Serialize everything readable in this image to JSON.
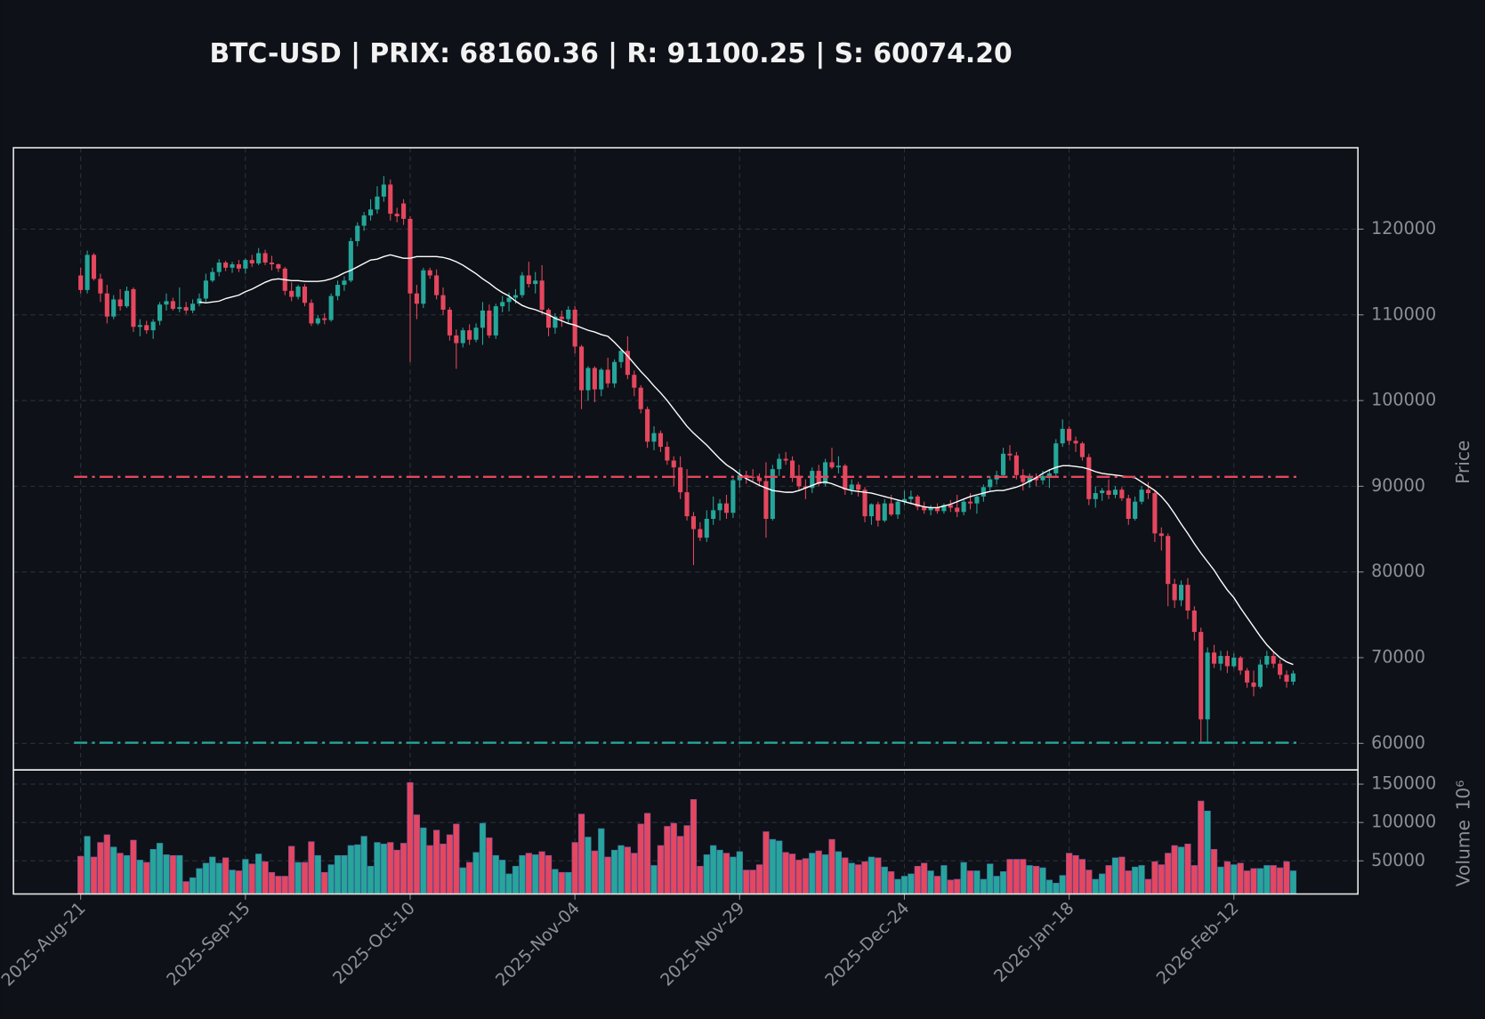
{
  "chart_data": {
    "type": "candlestick",
    "title": "BTC-USD | PRIX: 68160.36 | R: 91100.25 | S: 60074.20",
    "ylabel": "Price",
    "up_color": "#26a69a",
    "down_color": "#e5475e",
    "grid": true,
    "ylim": [
      56900,
      129500
    ],
    "yticks": [
      60000,
      70000,
      80000,
      90000,
      100000,
      110000,
      120000
    ],
    "categories": [
      "2025-Aug-21",
      null,
      null,
      null,
      null,
      null,
      null,
      null,
      null,
      null,
      null,
      null,
      null,
      null,
      null,
      null,
      null,
      null,
      null,
      null,
      null,
      null,
      null,
      null,
      null,
      "2025-Sep-15",
      null,
      null,
      null,
      null,
      null,
      null,
      null,
      null,
      null,
      null,
      null,
      null,
      null,
      null,
      null,
      null,
      null,
      null,
      null,
      null,
      null,
      null,
      null,
      null,
      "2025-Oct-10",
      null,
      null,
      null,
      null,
      null,
      null,
      null,
      null,
      null,
      null,
      null,
      null,
      null,
      null,
      null,
      null,
      null,
      null,
      null,
      null,
      null,
      null,
      null,
      null,
      "2025-Nov-04",
      null,
      null,
      null,
      null,
      null,
      null,
      null,
      null,
      null,
      null,
      null,
      null,
      null,
      null,
      null,
      null,
      null,
      null,
      null,
      null,
      null,
      null,
      null,
      null,
      "2025-Nov-29",
      null,
      null,
      null,
      null,
      null,
      null,
      null,
      null,
      null,
      null,
      null,
      null,
      null,
      null,
      null,
      null,
      null,
      null,
      null,
      null,
      null,
      null,
      null,
      null,
      "2025-Dec-24",
      null,
      null,
      null,
      null,
      null,
      null,
      null,
      null,
      null,
      null,
      null,
      null,
      null,
      null,
      null,
      null,
      null,
      null,
      null,
      null,
      null,
      null,
      null,
      null,
      "2026-Jan-18",
      null,
      null,
      null,
      null,
      null,
      null,
      null,
      null,
      null,
      null,
      null,
      null,
      null,
      null,
      null,
      null,
      null,
      null,
      null,
      null,
      null,
      null,
      null,
      null,
      "2026-Feb-12",
      null,
      null,
      null,
      null,
      null,
      null,
      null,
      null,
      null
    ],
    "open": [
      114600,
      112900,
      117000,
      114200,
      112500,
      109800,
      111800,
      111000,
      113000,
      108600,
      108800,
      108200,
      109300,
      111200,
      111600,
      110700,
      110900,
      110500,
      111300,
      111900,
      114000,
      115000,
      116100,
      115500,
      115900,
      115400,
      116400,
      116000,
      117200,
      116100,
      115900,
      115400,
      112800,
      112100,
      113300,
      111400,
      109000,
      109600,
      109400,
      112200,
      113500,
      114000,
      118600,
      120400,
      121600,
      122300,
      123800,
      125200,
      121800,
      123000,
      121200,
      112500,
      111300,
      115200,
      114600,
      112300,
      110600,
      107600,
      106700,
      108200,
      107100,
      108500,
      110500,
      107600,
      111000,
      111500,
      112000,
      112300,
      114600,
      113600,
      114000,
      110600,
      108500,
      109800,
      109500,
      110600,
      106300,
      101200,
      103800,
      101300,
      103600,
      102000,
      104500,
      105800,
      103000,
      101500,
      99000,
      95200,
      96200,
      94600,
      93000,
      92200,
      89300,
      86500,
      85000,
      84000,
      86200,
      87200,
      88000,
      86900,
      90700,
      91300,
      91100,
      91000,
      90600,
      86200,
      92000,
      93200,
      93000,
      91200,
      90000,
      89800,
      91800,
      90300,
      92800,
      92200,
      92400,
      89600,
      90200,
      89600,
      86500,
      87900,
      86000,
      88000,
      86700,
      88200,
      88500,
      88800,
      87600,
      87200,
      87500,
      87100,
      87800,
      87500,
      87000,
      88200,
      88000,
      88800,
      89900,
      90800,
      91300,
      93800,
      93600,
      91300,
      90500,
      91000,
      90700,
      91200,
      91500,
      95000,
      96700,
      95300,
      95000,
      93400,
      88500,
      89200,
      89500,
      89000,
      89600,
      88600,
      86200,
      88200,
      89600,
      89200,
      84500,
      84200,
      78600,
      76700,
      78500,
      75500,
      73000,
      62800,
      70600,
      69300,
      70200,
      69000,
      70000,
      68500,
      67100,
      66600,
      69200,
      70200,
      69300,
      68000,
      67200
    ],
    "high": [
      115500,
      117500,
      117200,
      114800,
      113500,
      112300,
      113000,
      113300,
      113200,
      109500,
      109300,
      109500,
      111500,
      112500,
      112000,
      113200,
      111500,
      111800,
      112500,
      114800,
      115500,
      116500,
      116300,
      116200,
      116400,
      116600,
      117000,
      117800,
      117600,
      116900,
      116000,
      115600,
      113800,
      113500,
      113600,
      111800,
      110000,
      110200,
      112500,
      114000,
      114500,
      119000,
      120800,
      122000,
      123500,
      125000,
      126200,
      125800,
      122500,
      123500,
      121500,
      113500,
      115500,
      115500,
      115300,
      113200,
      110900,
      108300,
      108500,
      108900,
      109000,
      111500,
      111200,
      111300,
      112200,
      112600,
      113000,
      115000,
      116200,
      115000,
      115800,
      110800,
      110200,
      110500,
      111000,
      111000,
      106500,
      104000,
      104000,
      103800,
      105000,
      104800,
      106000,
      107500,
      103500,
      101800,
      99300,
      97000,
      96500,
      95200,
      93500,
      93500,
      92000,
      87000,
      85800,
      87200,
      88800,
      88500,
      89000,
      90900,
      92000,
      91800,
      92000,
      91500,
      92800,
      92500,
      93800,
      94000,
      93500,
      92500,
      90800,
      92200,
      92500,
      93200,
      94500,
      93500,
      92600,
      90800,
      90500,
      89900,
      88000,
      88200,
      88500,
      89000,
      88400,
      89500,
      89500,
      89000,
      88200,
      87800,
      88000,
      88000,
      88400,
      89000,
      88500,
      89200,
      88900,
      90200,
      91200,
      91800,
      94500,
      94800,
      94000,
      92000,
      91500,
      91500,
      91800,
      92000,
      95500,
      97800,
      97000,
      95800,
      95200,
      93800,
      90000,
      89800,
      90800,
      90000,
      89900,
      89000,
      88800,
      90000,
      90500,
      89500,
      85200,
      84500,
      79200,
      79000,
      79300,
      76000,
      73500,
      71200,
      71500,
      70800,
      70800,
      70500,
      70200,
      68800,
      68500,
      69800,
      70800,
      70600,
      69800,
      68500,
      68500
    ],
    "low": [
      112500,
      112500,
      114000,
      111500,
      109000,
      109500,
      110500,
      110800,
      108000,
      107500,
      107800,
      107200,
      108800,
      110500,
      110500,
      110300,
      110100,
      110200,
      111000,
      111500,
      113800,
      114500,
      115100,
      114900,
      115000,
      114800,
      115600,
      115800,
      115800,
      115200,
      115000,
      112300,
      111600,
      111800,
      111000,
      108700,
      108800,
      108900,
      109200,
      111700,
      112800,
      113800,
      118000,
      119800,
      121000,
      121800,
      123200,
      121000,
      120800,
      120500,
      104500,
      109500,
      110800,
      114200,
      111800,
      110000,
      107000,
      103700,
      106200,
      106500,
      106800,
      106500,
      107300,
      107200,
      110300,
      110400,
      111300,
      112000,
      113200,
      112500,
      110000,
      107500,
      107800,
      108600,
      109000,
      105500,
      99000,
      100000,
      99800,
      100500,
      101500,
      101500,
      103800,
      102500,
      100500,
      98500,
      94500,
      94200,
      94000,
      92500,
      90000,
      88500,
      86000,
      80800,
      83600,
      83500,
      85500,
      86000,
      86200,
      86300,
      89800,
      90300,
      90600,
      90000,
      84000,
      86000,
      91200,
      92500,
      90500,
      89500,
      88500,
      89200,
      90000,
      90000,
      92000,
      91500,
      89000,
      89000,
      88800,
      85800,
      85500,
      85300,
      85800,
      86500,
      86200,
      87800,
      87900,
      87200,
      86800,
      86600,
      86800,
      86800,
      87000,
      86400,
      86600,
      87300,
      86800,
      88200,
      89500,
      90200,
      91000,
      93000,
      90800,
      89500,
      89800,
      90000,
      90200,
      89800,
      91200,
      94600,
      94800,
      94000,
      93000,
      87800,
      87500,
      88300,
      88500,
      88600,
      88300,
      85500,
      86000,
      87900,
      88500,
      83500,
      82500,
      76000,
      75800,
      76000,
      74500,
      72000,
      60200,
      60000,
      68800,
      68500,
      68200,
      68800,
      68000,
      66500,
      65500,
      66400,
      68800,
      68800,
      67500,
      66500,
      66800
    ],
    "close": [
      112900,
      117000,
      114200,
      112500,
      109800,
      111800,
      111000,
      112800,
      108600,
      108800,
      108200,
      109200,
      111200,
      111600,
      110700,
      110900,
      110500,
      111300,
      111900,
      114000,
      115000,
      116100,
      115500,
      115900,
      115400,
      116400,
      116000,
      117200,
      116100,
      115900,
      115400,
      112800,
      112100,
      113300,
      111400,
      109000,
      109600,
      109400,
      112200,
      113500,
      114000,
      118600,
      120400,
      121600,
      122300,
      123800,
      125200,
      121800,
      121500,
      121200,
      112500,
      111300,
      115200,
      114600,
      112300,
      110600,
      107600,
      106700,
      108200,
      107100,
      108500,
      110500,
      107600,
      111000,
      111500,
      112000,
      112300,
      114600,
      113600,
      114000,
      110600,
      108500,
      109800,
      109500,
      110600,
      106300,
      101200,
      103800,
      101300,
      103600,
      102000,
      104500,
      105800,
      103000,
      101500,
      99000,
      95200,
      96200,
      94600,
      93000,
      92200,
      89300,
      86500,
      85000,
      84000,
      86200,
      87200,
      88000,
      86900,
      90700,
      91300,
      91100,
      91000,
      90600,
      86200,
      92000,
      93200,
      93000,
      91200,
      90000,
      89800,
      91800,
      90300,
      92800,
      92200,
      92400,
      89600,
      90200,
      89600,
      86500,
      87900,
      86000,
      88000,
      86700,
      88200,
      88500,
      88800,
      87600,
      87200,
      87500,
      87100,
      87800,
      87500,
      87000,
      88200,
      88000,
      88800,
      89900,
      90800,
      91300,
      93800,
      93600,
      91300,
      90500,
      91000,
      90700,
      91200,
      91500,
      95000,
      96700,
      95300,
      95000,
      93400,
      88500,
      89200,
      89500,
      89000,
      89600,
      88600,
      86200,
      88200,
      89600,
      89200,
      84500,
      84200,
      78600,
      76700,
      78500,
      75500,
      73000,
      62800,
      70600,
      69300,
      70200,
      69000,
      70000,
      68500,
      67100,
      66600,
      69200,
      70200,
      69300,
      68000,
      67200,
      68160.36
    ],
    "ma": {
      "color": "#ffffff",
      "values": [
        null,
        null,
        null,
        null,
        null,
        null,
        null,
        null,
        null,
        null,
        null,
        null,
        null,
        null,
        null,
        null,
        null,
        null,
        111500,
        111400,
        111500,
        111600,
        111900,
        112100,
        112300,
        112700,
        113000,
        113400,
        113800,
        114100,
        114200,
        114100,
        114000,
        114000,
        113900,
        113900,
        113900,
        114000,
        114200,
        114500,
        114900,
        115200,
        115600,
        116000,
        116400,
        116500,
        116800,
        117000,
        116800,
        116600,
        116600,
        116800,
        116800,
        116800,
        116800,
        116700,
        116500,
        116200,
        115800,
        115300,
        114800,
        114200,
        113700,
        113100,
        112600,
        112200,
        111600,
        111100,
        110800,
        110600,
        110300,
        110000,
        109600,
        109300,
        109000,
        108800,
        108500,
        108200,
        108000,
        107700,
        107500,
        106800,
        106000,
        105200,
        104300,
        103400,
        102600,
        101700,
        100900,
        100000,
        99000,
        98000,
        97000,
        96200,
        95500,
        94800,
        94000,
        93200,
        92500,
        92000,
        91400,
        90900,
        90500,
        90100,
        89800,
        89500,
        89400,
        89300,
        89300,
        89500,
        89800,
        90100,
        90400,
        90500,
        90300,
        90000,
        89700,
        89500,
        89400,
        89300,
        89200,
        89000,
        88800,
        88600,
        88400,
        88200,
        88000,
        87800,
        87600,
        87500,
        87500,
        87700,
        87900,
        88200,
        88500,
        88800,
        89000,
        89200,
        89400,
        89500,
        89500,
        89700,
        89900,
        90200,
        90600,
        91000,
        91500,
        91900,
        92200,
        92400,
        92400,
        92300,
        92200,
        92000,
        91700,
        91500,
        91400,
        91300,
        91200,
        91100,
        91000,
        90500,
        90000,
        89500,
        88800,
        87900,
        86800,
        85600,
        84500,
        83300,
        82200,
        81200,
        80200,
        79000,
        77900,
        77000,
        75800,
        74700,
        73600,
        72500,
        71500,
        70700,
        70000,
        69500,
        69200
      ]
    },
    "levels": [
      {
        "value": 91100.25,
        "color": "#e5475e"
      },
      {
        "value": 60074.2,
        "color": "#26a69a"
      }
    ],
    "volume": {
      "ylabel": "Volume",
      "offset_label": "10⁶",
      "ylim": [
        6800,
        168500
      ],
      "yticks": [
        50000,
        100000,
        150000
      ],
      "values": [
        56000,
        82000,
        55000,
        74000,
        84000,
        68000,
        60000,
        57000,
        77000,
        51000,
        48000,
        65000,
        73000,
        58000,
        57000,
        57000,
        23000,
        28000,
        40000,
        47000,
        55000,
        47000,
        54000,
        38000,
        37000,
        52000,
        46000,
        59000,
        49000,
        35000,
        30000,
        30000,
        69000,
        48000,
        48000,
        75000,
        57000,
        35000,
        45000,
        57000,
        57000,
        70000,
        71000,
        82000,
        43000,
        74000,
        72000,
        74000,
        64000,
        73000,
        152000,
        110000,
        93000,
        70000,
        90000,
        72000,
        84000,
        98000,
        41000,
        48000,
        61000,
        99000,
        80000,
        57000,
        51000,
        33000,
        43000,
        57000,
        60000,
        58000,
        62000,
        57000,
        39000,
        35000,
        35000,
        74000,
        111000,
        81000,
        63000,
        92000,
        55000,
        64000,
        70000,
        68000,
        60000,
        98000,
        112000,
        44000,
        70000,
        95000,
        99000,
        82000,
        96000,
        130000,
        43000,
        58000,
        70000,
        64000,
        60000,
        55000,
        62000,
        38000,
        38000,
        45000,
        88000,
        78000,
        76000,
        61000,
        59000,
        51000,
        53000,
        60000,
        63000,
        58000,
        78000,
        62000,
        54000,
        47000,
        45000,
        49000,
        55000,
        54000,
        42000,
        36000,
        26000,
        30000,
        33000,
        43000,
        47000,
        37000,
        30000,
        44000,
        25000,
        26000,
        48000,
        37000,
        37000,
        26000,
        46000,
        30000,
        36000,
        52000,
        52000,
        52000,
        44000,
        43000,
        41000,
        25000,
        21000,
        31000,
        60000,
        57000,
        52000,
        38000,
        26000,
        33000,
        44000,
        54000,
        55000,
        37000,
        42000,
        44000,
        26000,
        49000,
        45000,
        60000,
        70000,
        68000,
        72000,
        44000,
        128000,
        115000,
        65000,
        42000,
        49000,
        45000,
        47000,
        37000,
        40000,
        40000,
        44000,
        44000,
        41000,
        49000,
        37000
      ]
    }
  }
}
